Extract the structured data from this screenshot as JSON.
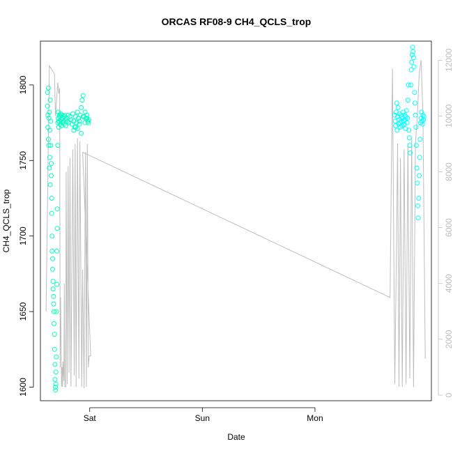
{
  "chart_data": {
    "type": "scatter",
    "title": "ORCAS RF08-9 CH4_QCLS_trop",
    "xlabel": "Date",
    "ylabel": "CH4_QCLS_trop",
    "x_ticks": [
      "Sat",
      "Sun",
      "Mon"
    ],
    "x_tick_values": [
      0,
      24,
      48
    ],
    "xlim": [
      -10.5,
      72.8
    ],
    "y_ticks": [
      1600,
      1650,
      1700,
      1750,
      1800
    ],
    "ylim": [
      1591,
      1829
    ],
    "y2_ticks": [
      0,
      2000,
      4000,
      6000,
      8000,
      10000,
      12000
    ],
    "y2lim": [
      -200,
      12680
    ],
    "grid": false,
    "legend": "none",
    "colors": {
      "ch4_low": "#00ffc0",
      "ch4_high": "#00ffff",
      "altitude": "#bdbdbd",
      "axis": "#000000"
    },
    "series": [
      {
        "values_note_free": true,
        "x": [
          -9.0,
          -9.0,
          -8.9,
          -8.9,
          -8.8,
          -8.8,
          -8.7,
          -8.7,
          -8.6,
          -8.6,
          -8.5,
          -8.5,
          -8.4,
          -8.4,
          -8.3,
          -8.3,
          -8.2,
          -8.2,
          -8.1,
          -8.1,
          -8.0,
          -8.0,
          -7.9,
          -7.9,
          -7.8,
          -7.8,
          -7.7,
          -7.7,
          -7.6,
          -7.6,
          -7.5,
          -7.5,
          -7.4,
          -7.4,
          -7.3,
          -7.3,
          -7.2,
          -7.2,
          -7.1,
          -7.1,
          -7.0,
          -7.0,
          -6.9,
          -6.9,
          -6.8,
          -6.8,
          -6.7,
          -6.7,
          -6.6,
          -6.6,
          -6.5,
          -6.5,
          -6.4,
          -6.3,
          -6.2,
          -6.1,
          -6.0,
          -5.9,
          -5.8,
          -5.7,
          -5.6,
          -5.5,
          -5.4,
          -5.3,
          -5.2,
          -5.1,
          -5.0,
          -4.8,
          -4.6,
          -4.4,
          -4.2,
          -4.0,
          -3.8,
          -3.6,
          -3.4,
          -3.2,
          -3.0,
          -2.8,
          -2.6,
          -2.4,
          -2.2,
          -2.0,
          -1.8,
          -1.6,
          -1.4,
          -1.2,
          -1.0,
          -0.8,
          -0.6,
          -0.4,
          -0.2,
          -3.4,
          -3.0,
          -2.6,
          -2.2,
          -1.8,
          -1.4,
          -1.0,
          -0.6,
          -0.3
        ],
        "y": [
          1795,
          1786,
          1780,
          1772,
          1798,
          1764,
          1778,
          1760,
          1745,
          1782,
          1770,
          1752,
          1734,
          1790,
          1776,
          1760,
          1748,
          1740,
          1725,
          1715,
          1700,
          1690,
          1685,
          1678,
          1670,
          1665,
          1660,
          1655,
          1650,
          1642,
          1635,
          1625,
          1615,
          1605,
          1600,
          1598,
          1602,
          1610,
          1620,
          1650,
          1668,
          1690,
          1705,
          1718,
          1760,
          1775,
          1782,
          1778,
          1776,
          1772,
          1780,
          1776,
          1779,
          1774,
          1781,
          1777,
          1773,
          1780,
          1775,
          1778,
          1776,
          1779,
          1774,
          1780,
          1777,
          1773,
          1778,
          1776,
          1780,
          1775,
          1779,
          1777,
          1774,
          1781,
          1776,
          1772,
          1779,
          1775,
          1782,
          1778,
          1776,
          1780,
          1785,
          1790,
          1793,
          1779,
          1775,
          1778,
          1780,
          1776,
          1777,
          1770,
          1772,
          1771,
          1774,
          1768,
          1779,
          1782,
          1778,
          1775
        ]
      },
      {
        "x": [
          65.0,
          65.1,
          65.2,
          65.3,
          65.4,
          65.5,
          65.6,
          65.7,
          65.8,
          65.9,
          66.0,
          66.1,
          66.2,
          66.3,
          66.4,
          66.5,
          66.6,
          66.7,
          66.8,
          66.9,
          67.0,
          67.1,
          67.2,
          67.3,
          67.4,
          67.5,
          67.6,
          67.7,
          67.8,
          67.9,
          68.0,
          68.1,
          68.2,
          68.3,
          68.4,
          68.5,
          68.6,
          68.7,
          68.8,
          68.9,
          69.0,
          69.1,
          69.2,
          69.3,
          69.4,
          69.5,
          69.6,
          69.7,
          69.8,
          69.9,
          70.0,
          70.1,
          70.2,
          70.3,
          70.4,
          70.5,
          70.6,
          70.7,
          70.8,
          70.9,
          71.0,
          71.1,
          71.2
        ],
        "y": [
          1780,
          1776,
          1773,
          1782,
          1788,
          1770,
          1779,
          1785,
          1774,
          1777,
          1781,
          1775,
          1772,
          1780,
          1776,
          1779,
          1773,
          1778,
          1782,
          1776,
          1774,
          1780,
          1777,
          1771,
          1779,
          1783,
          1775,
          1778,
          1790,
          1800,
          1770,
          1765,
          1760,
          1755,
          1800,
          1810,
          1815,
          1820,
          1825,
          1822,
          1818,
          1812,
          1795,
          1788,
          1780,
          1772,
          1760,
          1745,
          1735,
          1720,
          1712,
          1725,
          1740,
          1752,
          1764,
          1775,
          1778,
          1782,
          1776,
          1774,
          1780,
          1777,
          1779
        ]
      },
      {
        "x": [
          -9.3,
          -8.6,
          -7.5,
          -7.3,
          -6.8,
          -6.6,
          -6.4,
          -6.3,
          -6.2,
          -6.0,
          -5.9,
          -5.8,
          -5.7,
          -5.5,
          -5.4,
          -5.3,
          -5.1,
          -5.0,
          -4.8,
          -4.6,
          -4.4,
          -4.2,
          -4.0,
          -3.6,
          -3.3,
          -3.1,
          -2.9,
          -2.6,
          -2.3,
          -2.1,
          -1.7,
          -1.5,
          -1.2,
          -0.9,
          -0.7,
          -0.5,
          -0.3,
          -0.1,
          0.2,
          -1.5,
          64.0,
          64.5,
          65.0,
          65.3,
          65.6,
          65.9,
          66.2,
          66.6,
          67.0,
          67.4,
          67.8,
          68.2,
          68.6,
          69.0,
          69.4,
          69.8,
          70.2,
          70.6,
          71.0,
          71.5
        ],
        "y": [
          3000,
          11800,
          11500,
          10000,
          11200,
          10800,
          11000,
          1000,
          3500,
          300,
          1000,
          300,
          1200,
          500,
          4000,
          300,
          300,
          8000,
          400,
          8200,
          800,
          8500,
          300,
          8800,
          700,
          9000,
          300,
          9200,
          600,
          9100,
          300,
          4500,
          250,
          8700,
          300,
          9000,
          1000,
          1400,
          1400,
          8700,
          3500,
          11700,
          400,
          4500,
          9000,
          300,
          8500,
          300,
          8800,
          400,
          9000,
          600,
          9200,
          300,
          9000,
          10000,
          11500,
          12000,
          10000,
          1300
        ]
      }
    ]
  }
}
